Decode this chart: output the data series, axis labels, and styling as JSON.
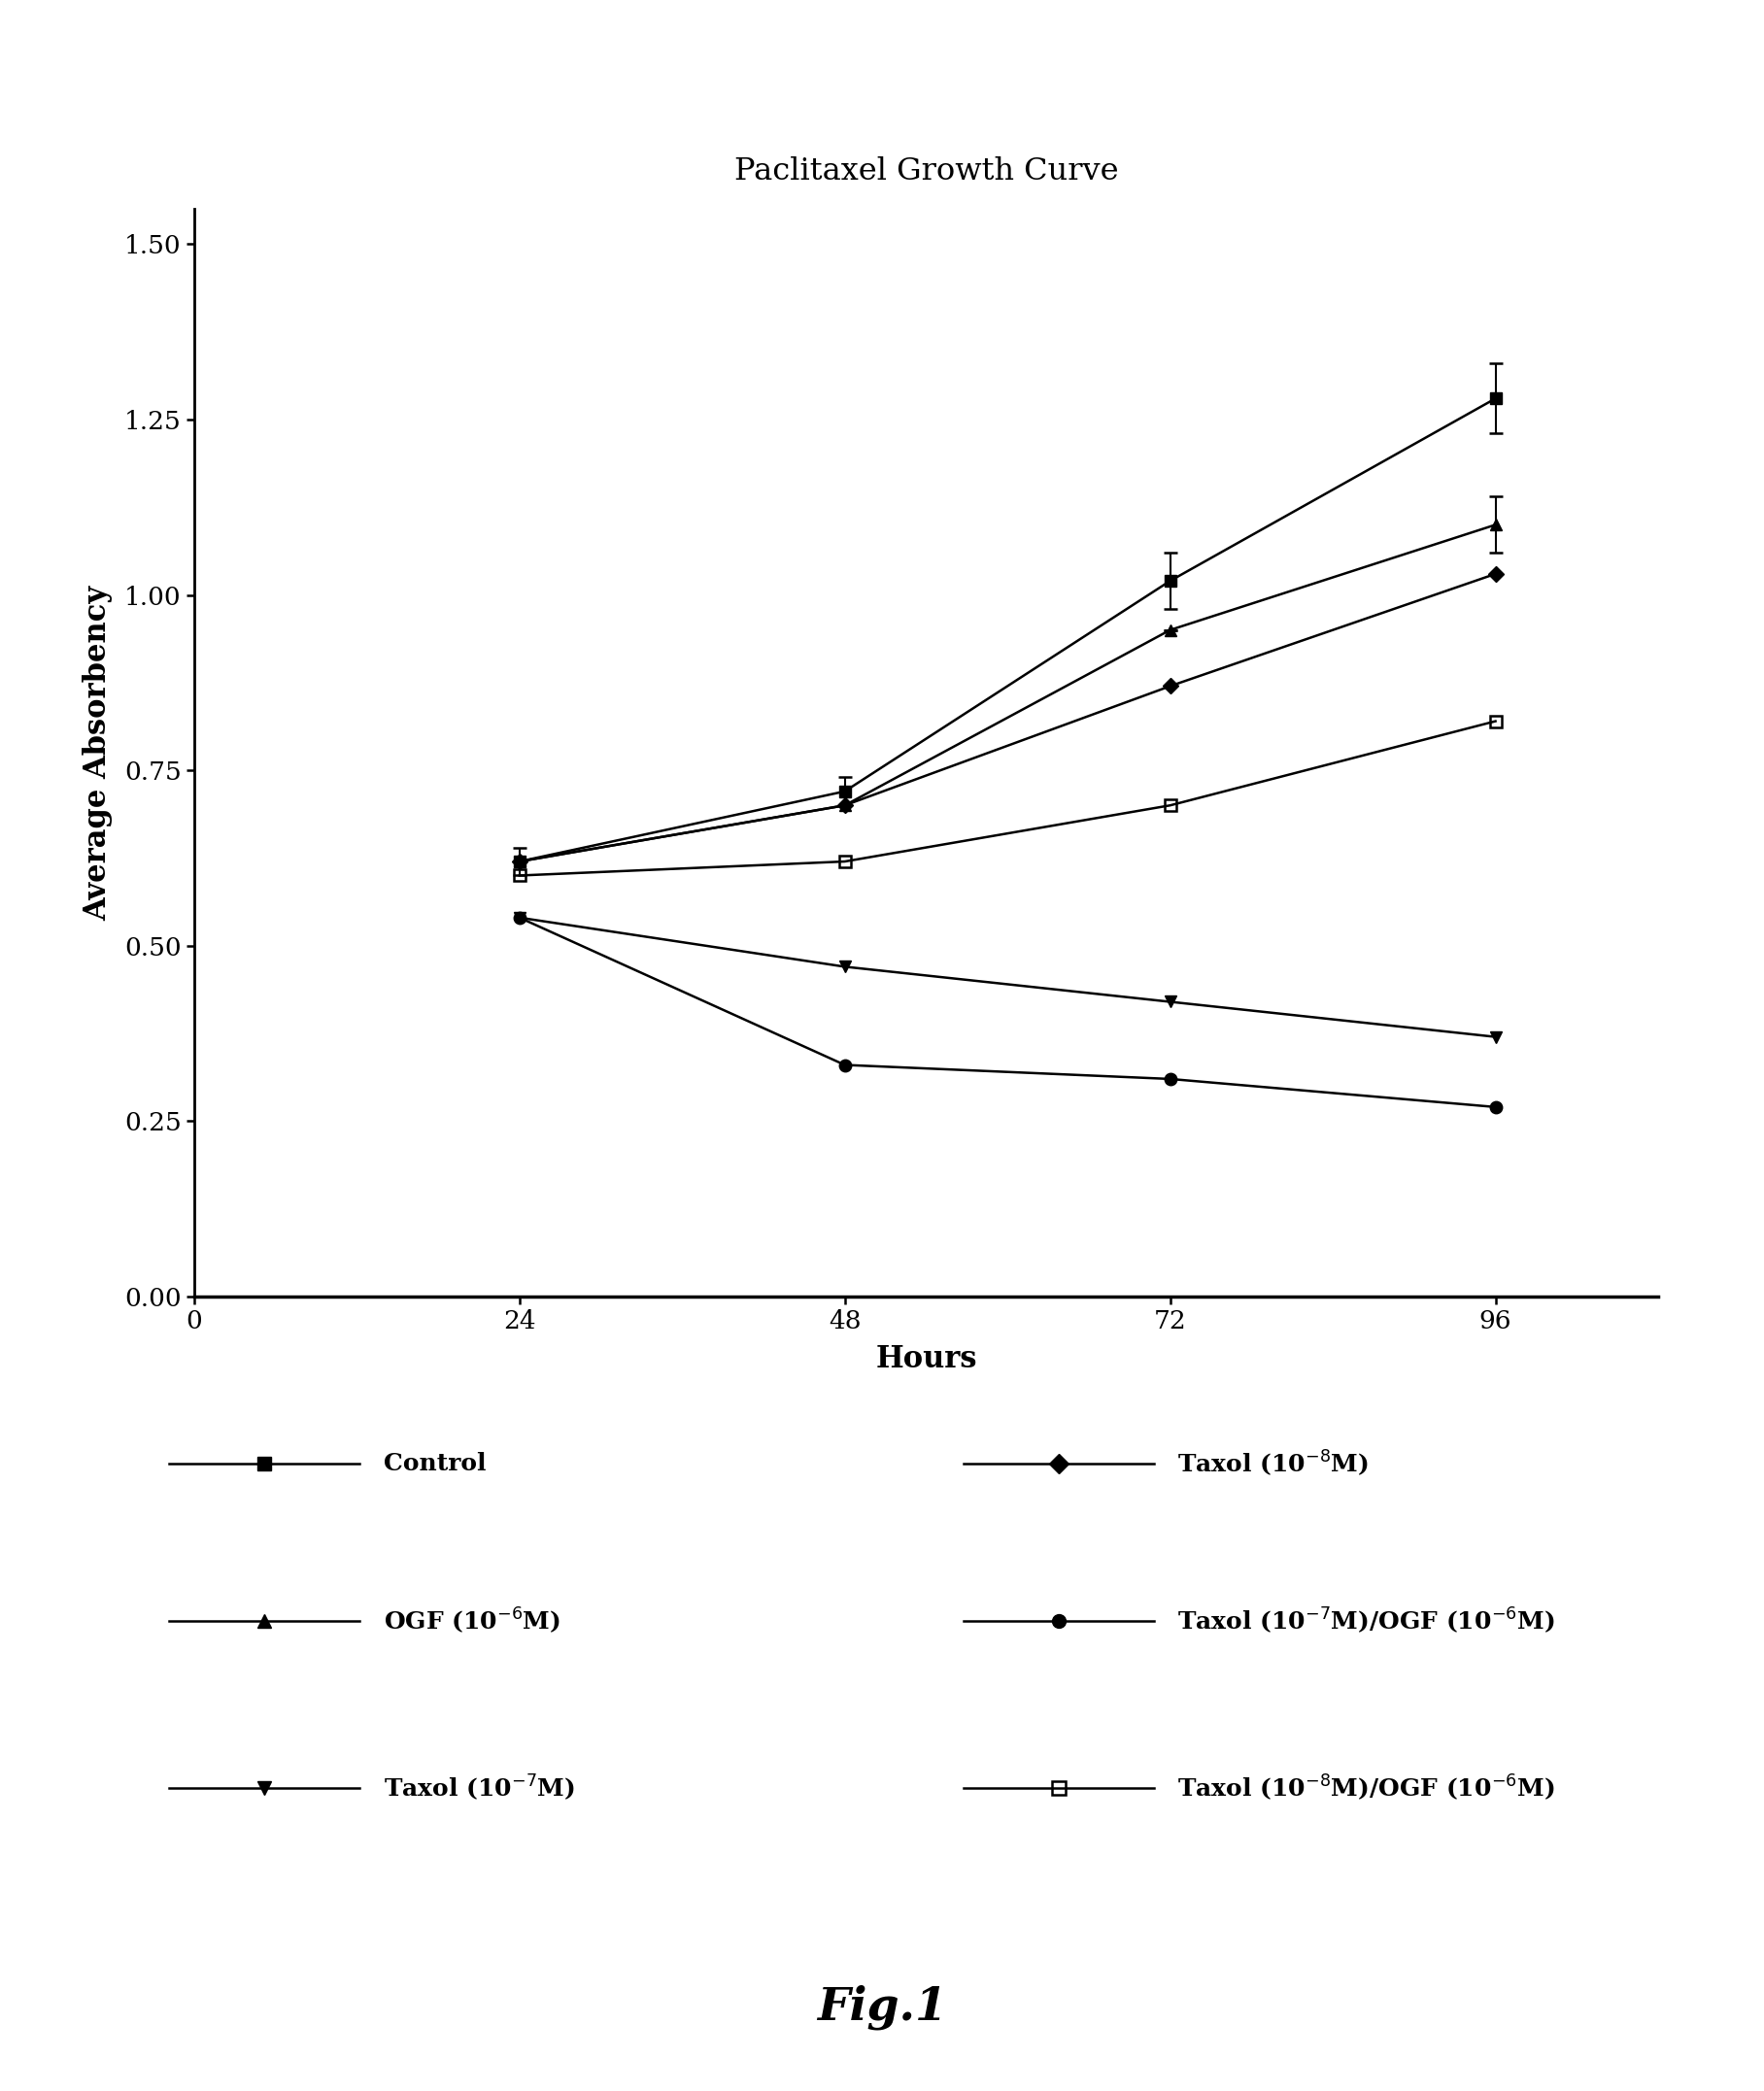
{
  "title": "Paclitaxel Growth Curve",
  "xlabel": "Hours",
  "ylabel": "Average Absorbency",
  "x": [
    24,
    48,
    72,
    96
  ],
  "xlim": [
    0,
    108
  ],
  "ylim": [
    0.0,
    1.55
  ],
  "xticks": [
    0,
    24,
    48,
    72,
    96
  ],
  "yticks": [
    0.0,
    0.25,
    0.5,
    0.75,
    1.0,
    1.25,
    1.5
  ],
  "series": [
    {
      "y": [
        0.62,
        0.72,
        1.02,
        1.28
      ],
      "yerr": [
        0.02,
        0.02,
        0.04,
        0.05
      ],
      "marker": "s",
      "fillstyle": "full",
      "linewidth": 1.8,
      "markersize": 9
    },
    {
      "y": [
        0.62,
        0.7,
        0.95,
        1.1
      ],
      "yerr": [
        0.0,
        0.0,
        0.0,
        0.04
      ],
      "marker": "^",
      "fillstyle": "full",
      "linewidth": 1.8,
      "markersize": 9
    },
    {
      "y": [
        0.54,
        0.47,
        0.42,
        0.37
      ],
      "yerr": [
        0.0,
        0.0,
        0.0,
        0.0
      ],
      "marker": "v",
      "fillstyle": "full",
      "linewidth": 1.8,
      "markersize": 9
    },
    {
      "y": [
        0.62,
        0.7,
        0.87,
        1.03
      ],
      "yerr": [
        0.0,
        0.0,
        0.0,
        0.0
      ],
      "marker": "D",
      "fillstyle": "full",
      "linewidth": 1.8,
      "markersize": 8
    },
    {
      "y": [
        0.54,
        0.33,
        0.31,
        0.27
      ],
      "yerr": [
        0.0,
        0.0,
        0.0,
        0.0
      ],
      "marker": "o",
      "fillstyle": "full",
      "linewidth": 1.8,
      "markersize": 9
    },
    {
      "y": [
        0.6,
        0.62,
        0.7,
        0.82
      ],
      "yerr": [
        0.0,
        0.0,
        0.0,
        0.0
      ],
      "marker": "s",
      "fillstyle": "none",
      "linewidth": 1.8,
      "markersize": 9
    }
  ],
  "legend_markers": [
    "s",
    "^",
    "v",
    "D",
    "o",
    "s"
  ],
  "legend_fillstyles": [
    "full",
    "full",
    "full",
    "full",
    "full",
    "none"
  ],
  "legend_left_labels": [
    "Control",
    "OGF (10$^{-6}$M)",
    "Taxol (10$^{-7}$M)"
  ],
  "legend_right_labels": [
    "Taxol (10$^{-8}$M)",
    "Taxol (10$^{-7}$M)/OGF (10$^{-6}$M)",
    "Taxol (10$^{-8}$M)/OGF (10$^{-6}$M)"
  ],
  "fig_label": "Fig.1",
  "background_color": "#ffffff"
}
